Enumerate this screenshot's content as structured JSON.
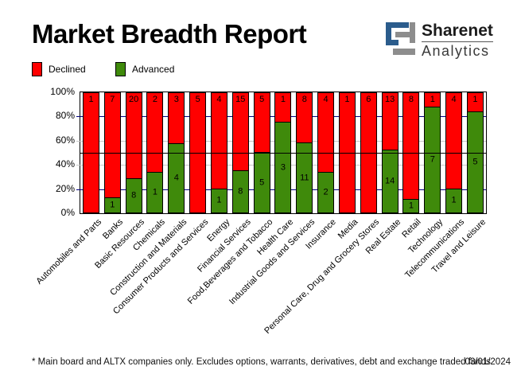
{
  "title": "Market Breadth Report",
  "logo": {
    "name": "Sharenet",
    "sub": "Analytics"
  },
  "legend": {
    "declined": "Declined",
    "advanced": "Advanced"
  },
  "colors": {
    "declined": "#FF0000",
    "advanced": "#3F8A0B",
    "navy": "#000080",
    "silver": "#C6C6C6",
    "midline": "#000000",
    "logo_blue": "#2B5C8C",
    "logo_gray": "#8D8D8D"
  },
  "footer": {
    "note": "* Main board and ALTX companies only. Excludes options, warrants, derivatives, debt and exchange traded funds",
    "date": "03/01/2024"
  },
  "chart_data": {
    "type": "bar",
    "stacked": true,
    "stacking": "percent",
    "title": "Market Breadth Report",
    "xlabel": "",
    "ylabel": "",
    "ylim": [
      0,
      100
    ],
    "y_ticks": [
      100,
      80,
      60,
      40,
      20,
      0
    ],
    "y_tick_suffix": "%",
    "gridlines": [
      {
        "value": 20,
        "style": "navy"
      },
      {
        "value": 40,
        "style": "silver"
      },
      {
        "value": 60,
        "style": "silver"
      },
      {
        "value": 80,
        "style": "navy"
      }
    ],
    "midline_value": 50,
    "legend_position": "top-left",
    "categories": [
      "Automobiles and Parts",
      "Banks",
      "Basic Resources",
      "Chemicals",
      "Construction and Materials",
      "Consumer Products and Services",
      "Energy",
      "Financial Services",
      "Food,Beverages and Tobacco",
      "Health Care",
      "Industrial Goods and Services",
      "Insurance",
      "Media",
      "Personal Care, Drug and Grocery Stores",
      "Real Estate",
      "Retail",
      "Technology",
      "Telecommunications",
      "Travel and Leisure"
    ],
    "series": [
      {
        "name": "Declined",
        "color": "#FF0000",
        "values": [
          1,
          7,
          20,
          2,
          3,
          5,
          4,
          15,
          5,
          1,
          8,
          4,
          1,
          6,
          13,
          8,
          1,
          4,
          1
        ]
      },
      {
        "name": "Advanced",
        "color": "#3F8A0B",
        "values": [
          0,
          1,
          8,
          1,
          4,
          0,
          1,
          8,
          5,
          3,
          11,
          2,
          0,
          0,
          14,
          1,
          7,
          1,
          5
        ]
      }
    ]
  }
}
